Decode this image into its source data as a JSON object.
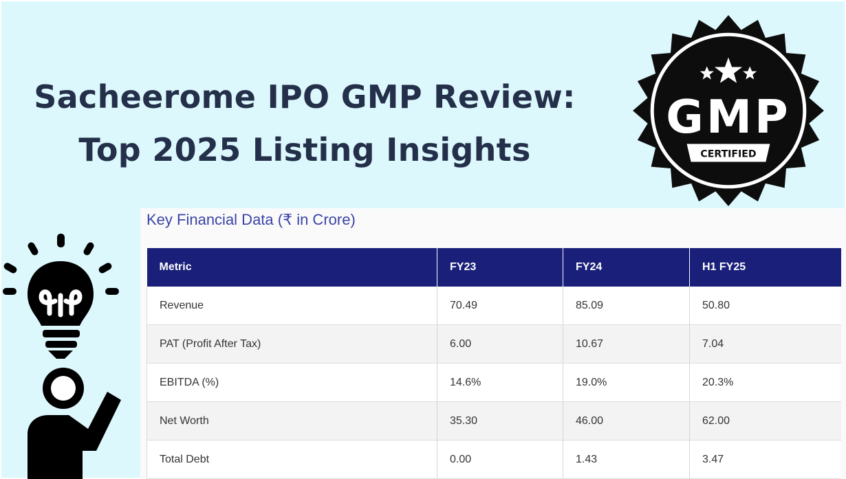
{
  "headline": {
    "line1": "Sacheerome IPO GMP Review:",
    "line2": "Top 2025 Listing Insights"
  },
  "badge": {
    "text": "GMP",
    "subtext": "CERTIFIED",
    "icon": "gmp-certified-seal-icon"
  },
  "illustration": {
    "icon": "lightbulb-idea-person-icon"
  },
  "table": {
    "title": "Key Financial Data (₹ in Crore)",
    "headers": [
      "Metric",
      "FY23",
      "FY24",
      "H1 FY25"
    ],
    "rows": [
      [
        "Revenue",
        "70.49",
        "85.09",
        "50.80"
      ],
      [
        "PAT (Profit After Tax)",
        "6.00",
        "10.67",
        "7.04"
      ],
      [
        "EBITDA (%)",
        "14.6%",
        "19.0%",
        "20.3%"
      ],
      [
        "Net Worth",
        "35.30",
        "46.00",
        "62.00"
      ],
      [
        "Total Debt",
        "0.00",
        "1.43",
        "3.47"
      ]
    ]
  },
  "colors": {
    "background": "#ddf8fd",
    "headline": "#24304a",
    "table_header": "#1a207a",
    "table_title": "#3b44a6"
  }
}
